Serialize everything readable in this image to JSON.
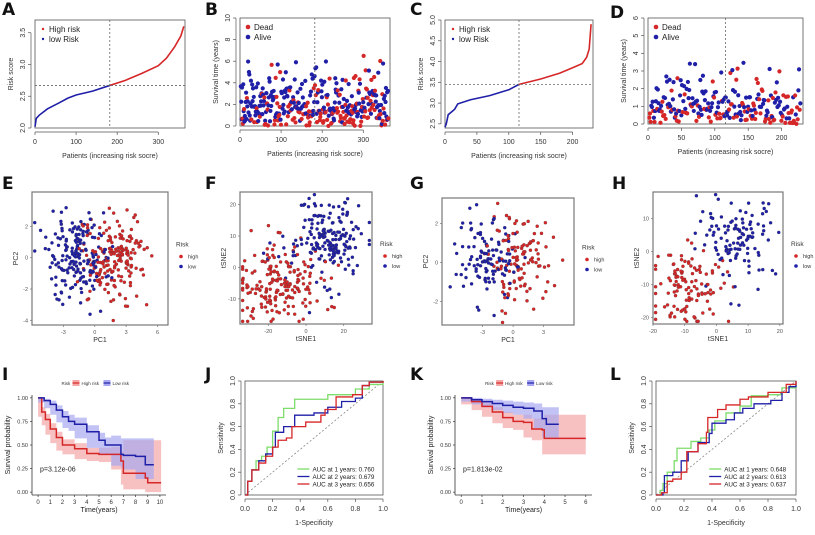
{
  "colors": {
    "red": "#d62728",
    "blue": "#1f1fa8",
    "green": "#7ddc6a",
    "grey": "#777777",
    "red_fill": "#f4a6a6",
    "blue_fill": "#a8a8f0"
  },
  "chart_data": [
    {
      "panel": "A",
      "type": "line",
      "title": "",
      "xlabel": "Patients (increasing risk socre)",
      "ylabel": "Risk score",
      "xlim": [
        0,
        365
      ],
      "ylim": [
        2.0,
        3.7
      ],
      "xticks": [
        0,
        100,
        200,
        300
      ],
      "yticks": [
        2.0,
        2.5,
        3.0,
        3.5
      ],
      "cutoff_x": 182,
      "cutoff_y": 2.67,
      "legend": [
        "High risk",
        "low Risk"
      ],
      "legend_position": "top-left",
      "series": [
        {
          "name": "low Risk",
          "x": [
            0,
            3,
            10,
            30,
            60,
            80,
            100,
            140,
            182
          ],
          "y": [
            2.02,
            2.15,
            2.2,
            2.3,
            2.4,
            2.47,
            2.52,
            2.58,
            2.67
          ]
        },
        {
          "name": "High risk",
          "x": [
            182,
            220,
            260,
            300,
            320,
            340,
            355,
            362
          ],
          "y": [
            2.67,
            2.75,
            2.86,
            2.98,
            3.1,
            3.28,
            3.45,
            3.6
          ]
        }
      ]
    },
    {
      "panel": "B",
      "type": "scatter",
      "xlabel": "Patients (increasing risk socre)",
      "ylabel": "Survival time (years)",
      "xlim": [
        0,
        365
      ],
      "ylim": [
        0,
        10
      ],
      "xticks": [
        0,
        100,
        200,
        300
      ],
      "yticks": [
        0,
        2,
        4,
        6,
        8,
        10
      ],
      "cutoff_x": 182,
      "legend": [
        "Dead",
        "Alive"
      ],
      "legend_position": "top-left",
      "n_points": 365
    },
    {
      "panel": "C",
      "type": "line",
      "xlabel": "Patients (increasing risk socre)",
      "ylabel": "Risk score",
      "xlim": [
        0,
        232
      ],
      "ylim": [
        2.4,
        5.0
      ],
      "xticks": [
        0,
        50,
        100,
        150,
        200
      ],
      "yticks": [
        2.5,
        3.0,
        3.5,
        4.0,
        4.5,
        5.0
      ],
      "cutoff_x": 116,
      "cutoff_y": 3.45,
      "legend": [
        "High risk",
        "low Risk"
      ],
      "legend_position": "top-left",
      "series": [
        {
          "name": "low Risk",
          "x": [
            0,
            2,
            5,
            15,
            20,
            40,
            70,
            100,
            116
          ],
          "y": [
            2.42,
            2.5,
            2.72,
            2.85,
            2.98,
            3.08,
            3.18,
            3.32,
            3.45
          ]
        },
        {
          "name": "High risk",
          "x": [
            116,
            150,
            180,
            200,
            215,
            222,
            226,
            229
          ],
          "y": [
            3.45,
            3.58,
            3.72,
            3.85,
            3.95,
            4.1,
            4.3,
            4.9
          ]
        }
      ]
    },
    {
      "panel": "D",
      "type": "scatter",
      "xlabel": "Patients (increasing risk socre)",
      "ylabel": "Survival time (years)",
      "xlim": [
        0,
        232
      ],
      "ylim": [
        0,
        6
      ],
      "xticks": [
        0,
        50,
        100,
        150,
        200
      ],
      "yticks": [
        0,
        1,
        2,
        3,
        4,
        5,
        6
      ],
      "cutoff_x": 116,
      "legend": [
        "Dead",
        "Alive"
      ],
      "legend_position": "top-left",
      "n_points": 232
    },
    {
      "panel": "E",
      "type": "scatter",
      "xlabel": "PC1",
      "ylabel": "PC2",
      "xlim": [
        -6,
        7
      ],
      "ylim": [
        -4.3,
        4.2
      ],
      "xticks": [
        -3,
        0,
        3,
        6
      ],
      "yticks": [
        -4,
        -2,
        0,
        2
      ],
      "legend_title": "Risk",
      "legend": [
        "high",
        "low"
      ],
      "legend_position": "right",
      "n_points": 365
    },
    {
      "panel": "F",
      "type": "scatter",
      "xlabel": "tSNE1",
      "ylabel": "tSNE2",
      "xlim": [
        -35,
        35
      ],
      "ylim": [
        -18,
        24
      ],
      "xticks": [
        -20,
        0,
        20
      ],
      "yticks": [
        -10,
        0,
        10,
        20
      ],
      "legend_title": "Risk",
      "legend": [
        "high",
        "low"
      ],
      "legend_position": "right",
      "n_points": 365
    },
    {
      "panel": "G",
      "type": "scatter",
      "xlabel": "PC1",
      "ylabel": "PC2",
      "xlim": [
        -7,
        6
      ],
      "ylim": [
        -3.2,
        3.3
      ],
      "xticks": [
        -3,
        0,
        3
      ],
      "yticks": [
        -2,
        0,
        2
      ],
      "legend_title": "Risk",
      "legend": [
        "high",
        "low"
      ],
      "legend_position": "right",
      "n_points": 232
    },
    {
      "panel": "H",
      "type": "scatter",
      "xlabel": "tSNE1",
      "ylabel": "tSNE2",
      "xlim": [
        -20,
        21
      ],
      "ylim": [
        -22,
        18
      ],
      "xticks": [
        -20,
        -10,
        0,
        10,
        20
      ],
      "yticks": [
        -20,
        -10,
        0,
        10
      ],
      "legend_title": "Risk",
      "legend": [
        "high",
        "low"
      ],
      "legend_position": "right",
      "n_points": 232
    },
    {
      "panel": "I",
      "type": "line",
      "xlabel": "Time(years)",
      "ylabel": "Survival probability",
      "xlim": [
        -0.5,
        10.5
      ],
      "ylim": [
        -0.03,
        1.03
      ],
      "xticks": [
        0,
        1,
        2,
        3,
        4,
        5,
        6,
        7,
        8,
        9,
        10
      ],
      "yticks": [
        "0.00",
        "0.25",
        "0.50",
        "0.75",
        "1.00"
      ],
      "legend_title": "Risk",
      "legend": [
        "High risk",
        "Low risk"
      ],
      "legend_position": "top",
      "annotation": "p=3.12e-06",
      "series": [
        {
          "name": "High risk",
          "x": [
            0,
            0.3,
            0.6,
            1,
            1.5,
            2,
            3,
            4,
            5,
            6,
            6.8,
            7,
            8.8,
            9,
            10.1
          ],
          "y": [
            1,
            0.85,
            0.77,
            0.67,
            0.58,
            0.5,
            0.46,
            0.41,
            0.4,
            0.4,
            0.33,
            0.2,
            0.15,
            0.1,
            0.1
          ],
          "lower": [
            1,
            0.8,
            0.71,
            0.61,
            0.52,
            0.44,
            0.4,
            0.35,
            0.33,
            0.32,
            0.24,
            0.08,
            0.03,
            0.0,
            0.0
          ],
          "upper": [
            1,
            0.9,
            0.83,
            0.73,
            0.64,
            0.56,
            0.52,
            0.47,
            0.47,
            0.48,
            0.43,
            0.55,
            0.55,
            0.55,
            0.55
          ]
        },
        {
          "name": "Low risk",
          "x": [
            0,
            0.5,
            1,
            1.5,
            2,
            2.5,
            3,
            4,
            5,
            5.5,
            6,
            6.8,
            7,
            8,
            8.8,
            9.5
          ],
          "y": [
            1,
            0.97,
            0.93,
            0.87,
            0.8,
            0.75,
            0.72,
            0.64,
            0.55,
            0.5,
            0.5,
            0.4,
            0.39,
            0.38,
            0.29,
            0.29
          ],
          "lower": [
            1,
            0.95,
            0.89,
            0.82,
            0.74,
            0.68,
            0.65,
            0.57,
            0.47,
            0.41,
            0.4,
            0.28,
            0.26,
            0.24,
            0.14,
            0.14
          ],
          "upper": [
            1,
            0.99,
            0.97,
            0.92,
            0.86,
            0.82,
            0.79,
            0.71,
            0.63,
            0.58,
            0.6,
            0.57,
            0.57,
            0.57,
            0.57,
            0.57
          ]
        }
      ]
    },
    {
      "panel": "J",
      "type": "line",
      "xlabel": "1-Specificity",
      "ylabel": "Sensitivity",
      "xlim": [
        0,
        1
      ],
      "ylim": [
        0,
        1
      ],
      "xticks": [
        "0.0",
        "0.2",
        "0.4",
        "0.6",
        "0.8",
        "1.0"
      ],
      "yticks": [
        "0.0",
        "0.2",
        "0.4",
        "0.6",
        "0.8",
        "1.0"
      ],
      "legend": [
        "AUC at 1 years: 0.760",
        "AUC at 2 years: 0.679",
        "AUC at 3 years: 0.656"
      ],
      "legend_position": "bottom-right",
      "series": [
        {
          "name": "AUC at 1 years: 0.760",
          "color": "green",
          "x": [
            0,
            0.02,
            0.05,
            0.08,
            0.12,
            0.16,
            0.2,
            0.24,
            0.28,
            0.36,
            0.55,
            0.6,
            0.8,
            0.9,
            1
          ],
          "y": [
            0,
            0.12,
            0.22,
            0.3,
            0.34,
            0.42,
            0.56,
            0.68,
            0.76,
            0.84,
            0.84,
            0.88,
            0.93,
            0.97,
            1
          ]
        },
        {
          "name": "AUC at 2 years: 0.679",
          "color": "blue",
          "x": [
            0,
            0.02,
            0.05,
            0.1,
            0.15,
            0.2,
            0.22,
            0.28,
            0.36,
            0.5,
            0.6,
            0.7,
            0.8,
            0.85,
            0.9,
            1
          ],
          "y": [
            0,
            0.12,
            0.22,
            0.3,
            0.36,
            0.42,
            0.55,
            0.6,
            0.7,
            0.72,
            0.77,
            0.82,
            0.85,
            0.96,
            0.99,
            1
          ]
        },
        {
          "name": "AUC at 3 years: 0.656",
          "color": "red",
          "x": [
            0,
            0.02,
            0.05,
            0.1,
            0.15,
            0.2,
            0.24,
            0.3,
            0.34,
            0.44,
            0.55,
            0.58,
            0.66,
            0.78,
            0.85,
            0.9,
            1
          ],
          "y": [
            0,
            0.12,
            0.22,
            0.28,
            0.34,
            0.42,
            0.48,
            0.5,
            0.6,
            0.64,
            0.7,
            0.75,
            0.86,
            0.88,
            0.96,
            0.99,
            1
          ]
        }
      ]
    },
    {
      "panel": "K",
      "type": "line",
      "xlabel": "Time(years)",
      "ylabel": "Survival probability",
      "xlim": [
        -0.3,
        6.3
      ],
      "ylim": [
        -0.03,
        1.03
      ],
      "xticks": [
        0,
        1,
        2,
        3,
        4,
        5,
        6
      ],
      "yticks": [
        "0.00",
        "0.25",
        "0.50",
        "0.75",
        "1.00"
      ],
      "legend_title": "Risk",
      "legend": [
        "High risk",
        "Low risk"
      ],
      "legend_position": "top",
      "annotation": "p=1.813e-02",
      "series": [
        {
          "name": "High risk",
          "x": [
            0,
            0.5,
            1,
            1.5,
            2,
            2.5,
            3,
            3.4,
            3.9,
            4,
            6
          ],
          "y": [
            1,
            0.96,
            0.91,
            0.85,
            0.79,
            0.75,
            0.74,
            0.67,
            0.66,
            0.57,
            0.57
          ],
          "lower": [
            1,
            0.93,
            0.87,
            0.8,
            0.73,
            0.68,
            0.66,
            0.58,
            0.55,
            0.4,
            0.4
          ],
          "upper": [
            1,
            0.99,
            0.96,
            0.9,
            0.85,
            0.82,
            0.82,
            0.78,
            0.78,
            0.82,
            0.82
          ]
        },
        {
          "name": "Low risk",
          "x": [
            0,
            0.5,
            1,
            1.5,
            2,
            2.5,
            3,
            3.5,
            3.9,
            4.1,
            4.7
          ],
          "y": [
            1,
            0.98,
            0.96,
            0.94,
            0.92,
            0.9,
            0.89,
            0.86,
            0.78,
            0.72,
            0.72
          ],
          "lower": [
            1,
            0.96,
            0.93,
            0.9,
            0.87,
            0.84,
            0.82,
            0.78,
            0.68,
            0.58,
            0.58
          ],
          "upper": [
            1,
            1.0,
            0.99,
            0.98,
            0.97,
            0.96,
            0.95,
            0.94,
            0.9,
            0.9,
            0.9
          ]
        }
      ]
    },
    {
      "panel": "L",
      "type": "line",
      "xlabel": "1-Specificity",
      "ylabel": "Sensitivity",
      "xlim": [
        0,
        1
      ],
      "ylim": [
        0,
        1
      ],
      "xticks": [
        "0.0",
        "0.2",
        "0.4",
        "0.6",
        "0.8",
        "1.0"
      ],
      "yticks": [
        "0.0",
        "0.2",
        "0.4",
        "0.6",
        "0.8",
        "1.0"
      ],
      "legend": [
        "AUC at 1 years: 0.648",
        "AUC at 2 years: 0.613",
        "AUC at 3 years: 0.637"
      ],
      "legend_position": "bottom-right",
      "series": [
        {
          "name": "AUC at 1 years: 0.648",
          "color": "green",
          "x": [
            0,
            0.03,
            0.05,
            0.08,
            0.13,
            0.15,
            0.2,
            0.25,
            0.32,
            0.38,
            0.42,
            0.5,
            0.6,
            0.68,
            0.8,
            0.9,
            1
          ],
          "y": [
            0,
            0.04,
            0.1,
            0.2,
            0.3,
            0.41,
            0.41,
            0.47,
            0.5,
            0.57,
            0.65,
            0.72,
            0.78,
            0.87,
            0.88,
            0.94,
            1
          ]
        },
        {
          "name": "AUC at 2 years: 0.613",
          "color": "blue",
          "x": [
            0,
            0.05,
            0.06,
            0.12,
            0.18,
            0.23,
            0.3,
            0.38,
            0.4,
            0.5,
            0.56,
            0.62,
            0.7,
            0.82,
            0.9,
            0.95,
            1
          ],
          "y": [
            0,
            0.02,
            0.17,
            0.2,
            0.3,
            0.38,
            0.46,
            0.54,
            0.63,
            0.66,
            0.72,
            0.76,
            0.8,
            0.83,
            0.9,
            0.95,
            1
          ]
        },
        {
          "name": "AUC at 3 years: 0.637",
          "color": "red",
          "x": [
            0,
            0.04,
            0.08,
            0.12,
            0.18,
            0.22,
            0.3,
            0.36,
            0.37,
            0.44,
            0.5,
            0.6,
            0.66,
            0.8,
            0.88,
            0.93,
            1
          ],
          "y": [
            0,
            0.02,
            0.12,
            0.14,
            0.2,
            0.38,
            0.45,
            0.55,
            0.68,
            0.75,
            0.79,
            0.84,
            0.86,
            0.9,
            0.9,
            0.97,
            1
          ]
        }
      ]
    }
  ]
}
